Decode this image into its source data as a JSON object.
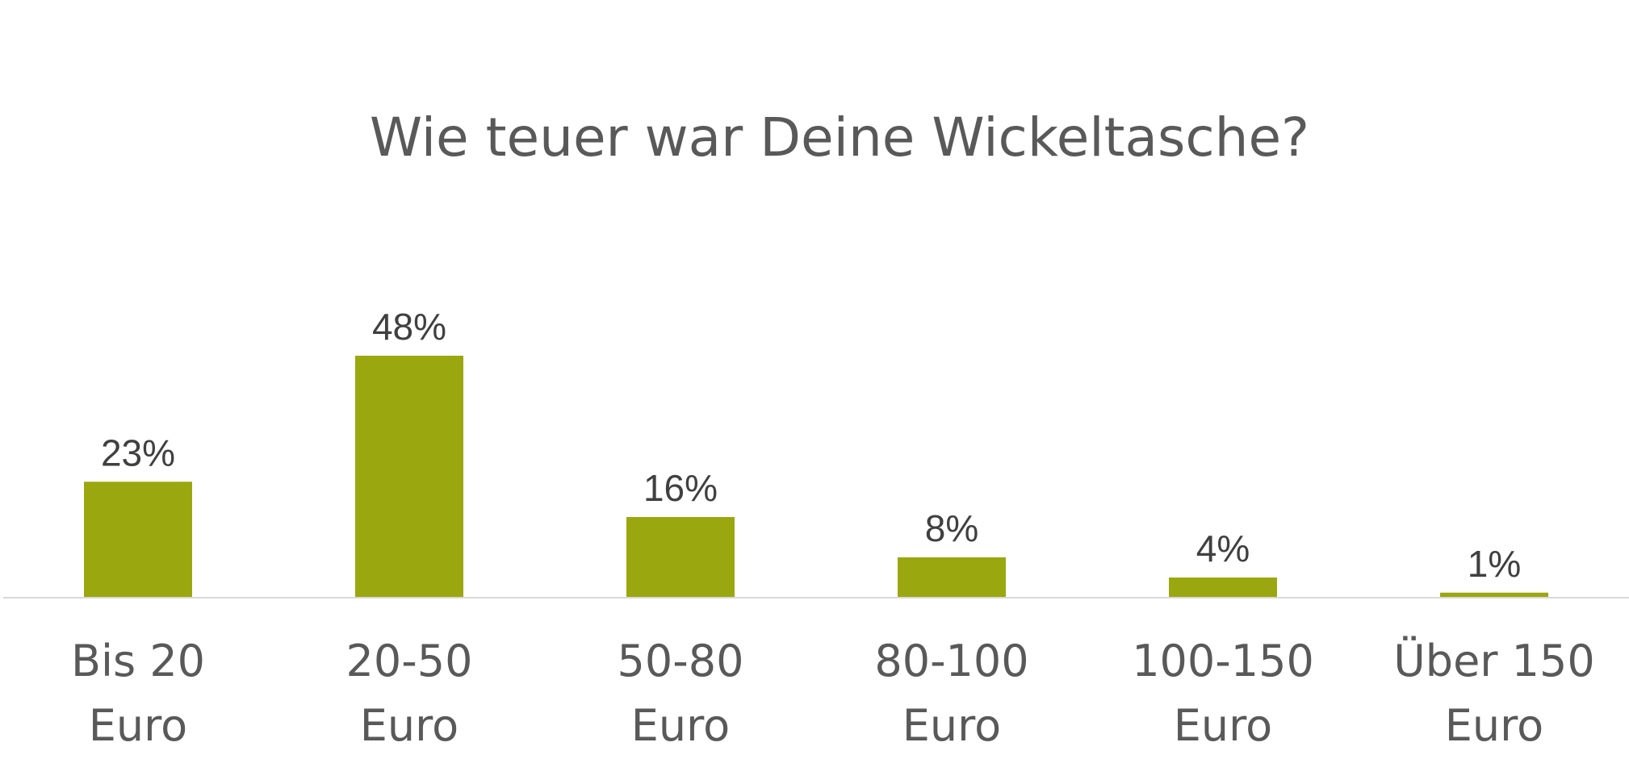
{
  "chart_data": {
    "type": "bar",
    "title": "Wie teuer war Deine Wickeltasche?",
    "categories": [
      [
        "Bis 20",
        "Euro"
      ],
      [
        "20-50",
        "Euro"
      ],
      [
        "50-80",
        "Euro"
      ],
      [
        "80-100",
        "Euro"
      ],
      [
        "100-150",
        "Euro"
      ],
      [
        "Über 150",
        "Euro"
      ]
    ],
    "values": [
      23,
      48,
      16,
      8,
      4,
      1
    ],
    "data_labels": [
      "23%",
      "48%",
      "16%",
      "8%",
      "4%",
      "1%"
    ],
    "unit": "%",
    "xlabel": "",
    "ylabel": "",
    "ylim": [
      0,
      48
    ],
    "grid": false,
    "legend": "none",
    "bar_color": "#9BA70E",
    "axis_color": "#D9D9D9"
  }
}
